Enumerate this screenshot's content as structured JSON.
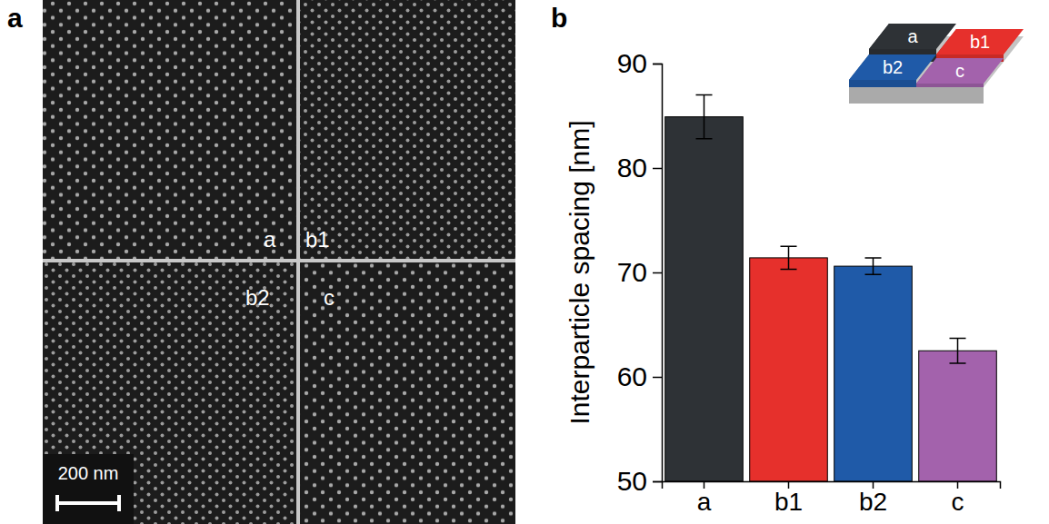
{
  "panel_labels": [
    "a",
    "b"
  ],
  "image": {
    "region_labels": [
      "a",
      "b1",
      "b2",
      "c"
    ],
    "scale_bar": "200 nm"
  },
  "chart_data": {
    "type": "bar",
    "y_label": "Interparticle spacing [nm]",
    "categories": [
      "a",
      "b1",
      "b2",
      "c"
    ],
    "values": [
      84.9,
      71.4,
      70.6,
      62.5
    ],
    "errors": [
      2.1,
      1.1,
      0.8,
      1.2
    ],
    "colors": [
      "#2e3236",
      "#e6302c",
      "#1f5aa8",
      "#a362ac"
    ],
    "ylim": [
      50,
      90
    ],
    "yticks": [
      50,
      60,
      70,
      80,
      90
    ],
    "inset_labels": [
      "a",
      "b1",
      "b2",
      "c"
    ]
  }
}
